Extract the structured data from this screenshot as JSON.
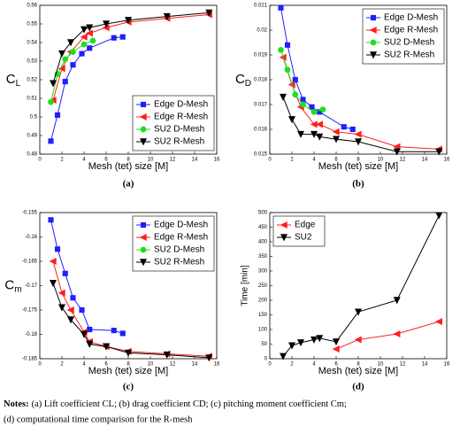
{
  "chart_data": [
    {
      "type": "line",
      "ylabel": "C",
      "ylabel_sub": "L",
      "xlabel": "Mesh (tet) size [M]",
      "panel_label": "(a)",
      "legend": "lower right",
      "xlim": [
        0,
        16
      ],
      "xticks": [
        0,
        2,
        4,
        6,
        8,
        10,
        12,
        14,
        16
      ],
      "ylim": [
        0.48,
        0.56
      ],
      "yticks": [
        0.48,
        0.49,
        0.5,
        0.51,
        0.52,
        0.53,
        0.54,
        0.55,
        0.56
      ],
      "series": [
        {
          "name": "Edge D-Mesh",
          "color": "#1f1fff",
          "marker": "square",
          "x": [
            1.0,
            1.6,
            2.3,
            3.0,
            3.8,
            4.5,
            6.7,
            7.5
          ],
          "values": [
            0.487,
            0.501,
            0.519,
            0.528,
            0.534,
            0.537,
            0.5425,
            0.543
          ]
        },
        {
          "name": "Edge R-Mesh",
          "color": "#ff1f1f",
          "marker": "triangle-left",
          "x": [
            1.2,
            2.0,
            2.8,
            4.0,
            4.5,
            6.0,
            8.0,
            11.5,
            15.3
          ],
          "values": [
            0.509,
            0.526,
            0.535,
            0.543,
            0.545,
            0.548,
            0.551,
            0.553,
            0.555
          ]
        },
        {
          "name": "SU2 D-Mesh",
          "color": "#1fdf1f",
          "marker": "circle",
          "x": [
            1.0,
            1.6,
            2.3,
            3.0,
            4.0,
            4.8
          ],
          "values": [
            0.508,
            0.523,
            0.531,
            0.535,
            0.539,
            0.541
          ]
        },
        {
          "name": "SU2 R-Mesh",
          "color": "#000000",
          "marker": "triangle-down",
          "x": [
            1.2,
            2.0,
            2.8,
            4.0,
            4.5,
            6.0,
            8.0,
            11.5,
            15.3
          ],
          "values": [
            0.518,
            0.534,
            0.54,
            0.547,
            0.548,
            0.55,
            0.552,
            0.554,
            0.556
          ]
        }
      ]
    },
    {
      "type": "line",
      "ylabel": "C",
      "ylabel_sub": "D",
      "xlabel": "Mesh (tet) size [M]",
      "panel_label": "(b)",
      "legend": "upper right",
      "xlim": [
        0,
        16
      ],
      "xticks": [
        0,
        2,
        4,
        6,
        8,
        10,
        12,
        14,
        16
      ],
      "ylim": [
        0.015,
        0.021
      ],
      "yticks": [
        0.015,
        0.016,
        0.017,
        0.018,
        0.019,
        0.02,
        0.021
      ],
      "series": [
        {
          "name": "Edge D-Mesh",
          "color": "#1f1fff",
          "marker": "square",
          "x": [
            1.0,
            1.6,
            2.3,
            3.0,
            3.8,
            4.5,
            6.7,
            7.5
          ],
          "values": [
            0.0209,
            0.0194,
            0.018,
            0.0172,
            0.0169,
            0.0167,
            0.0161,
            0.016
          ]
        },
        {
          "name": "Edge R-Mesh",
          "color": "#ff1f1f",
          "marker": "triangle-left",
          "x": [
            1.2,
            2.0,
            2.8,
            4.0,
            4.5,
            6.0,
            8.0,
            11.5,
            15.3
          ],
          "values": [
            0.0189,
            0.0178,
            0.0169,
            0.0162,
            0.0162,
            0.0159,
            0.0158,
            0.0153,
            0.0152
          ]
        },
        {
          "name": "SU2 D-Mesh",
          "color": "#1fdf1f",
          "marker": "circle",
          "x": [
            1.0,
            1.6,
            2.3,
            3.0,
            4.0,
            4.8
          ],
          "values": [
            0.0192,
            0.0184,
            0.0174,
            0.017,
            0.0167,
            0.0168
          ]
        },
        {
          "name": "SU2 R-Mesh",
          "color": "#000000",
          "marker": "triangle-down",
          "x": [
            1.2,
            2.0,
            2.8,
            4.0,
            4.5,
            6.0,
            8.0,
            11.5,
            15.3
          ],
          "values": [
            0.0173,
            0.0164,
            0.0158,
            0.0158,
            0.0157,
            0.0156,
            0.0155,
            0.0151,
            0.0151
          ]
        }
      ]
    },
    {
      "type": "line",
      "ylabel": "C",
      "ylabel_sub": "m",
      "xlabel": "Mesh (tet) size [M]",
      "panel_label": "(c)",
      "legend": "upper right",
      "xlim": [
        0,
        16
      ],
      "xticks": [
        0,
        2,
        4,
        6,
        8,
        10,
        12,
        14,
        16
      ],
      "ylim": [
        -0.185,
        -0.155
      ],
      "yticks": [
        -0.185,
        -0.18,
        -0.175,
        -0.17,
        -0.165,
        -0.16,
        -0.155
      ],
      "series": [
        {
          "name": "Edge D-Mesh",
          "color": "#1f1fff",
          "marker": "square",
          "x": [
            1.0,
            1.6,
            2.3,
            3.0,
            3.8,
            4.5,
            6.7,
            7.5
          ],
          "values": [
            -0.1565,
            -0.1625,
            -0.1675,
            -0.1725,
            -0.175,
            -0.179,
            -0.1792,
            -0.1798
          ]
        },
        {
          "name": "Edge R-Mesh",
          "color": "#ff1f1f",
          "marker": "triangle-left",
          "x": [
            1.2,
            2.0,
            2.8,
            4.0,
            4.5,
            6.0,
            8.0,
            11.5,
            15.3
          ],
          "values": [
            -0.165,
            -0.1715,
            -0.175,
            -0.1795,
            -0.1815,
            -0.1825,
            -0.1835,
            -0.184,
            -0.1845
          ]
        },
        {
          "name": "SU2 D-Mesh",
          "color": "#1fdf1f",
          "marker": "circle",
          "x": [],
          "values": []
        },
        {
          "name": "SU2 R-Mesh",
          "color": "#000000",
          "marker": "triangle-down",
          "x": [
            1.2,
            2.0,
            2.8,
            4.0,
            4.5,
            6.0,
            8.0,
            11.5,
            15.3
          ],
          "values": [
            -0.1695,
            -0.1745,
            -0.177,
            -0.18,
            -0.182,
            -0.1825,
            -0.1838,
            -0.1842,
            -0.1848
          ]
        }
      ]
    },
    {
      "type": "line",
      "ylabel": "Time [min]",
      "xlabel": "Mesh (tet) size [M]",
      "panel_label": "(d)",
      "legend": "upper left",
      "xlim": [
        0,
        16
      ],
      "xticks": [
        0,
        2,
        4,
        6,
        8,
        10,
        12,
        14,
        16
      ],
      "ylim": [
        0,
        500
      ],
      "yticks": [
        0,
        50,
        100,
        150,
        200,
        250,
        300,
        350,
        400,
        450,
        500
      ],
      "series": [
        {
          "name": "Edge",
          "color": "#ff1f1f",
          "marker": "triangle-left",
          "x": [
            6.0,
            8.0,
            11.5,
            15.3
          ],
          "values": [
            33,
            65,
            85,
            127
          ]
        },
        {
          "name": "SU2",
          "color": "#000000",
          "marker": "triangle-down",
          "x": [
            1.2,
            2.0,
            2.8,
            4.0,
            4.5,
            6.0,
            8.0,
            11.5,
            15.3
          ],
          "values": [
            8,
            45,
            55,
            65,
            70,
            58,
            160,
            200,
            490
          ]
        }
      ]
    }
  ],
  "notes": {
    "label": "Notes:",
    "line1": "(a) Lift coefficient CL; (b) drag coefficient CD; (c) pitching moment coefficient Cm;",
    "line2": "(d) computational time comparison for the R-mesh"
  }
}
